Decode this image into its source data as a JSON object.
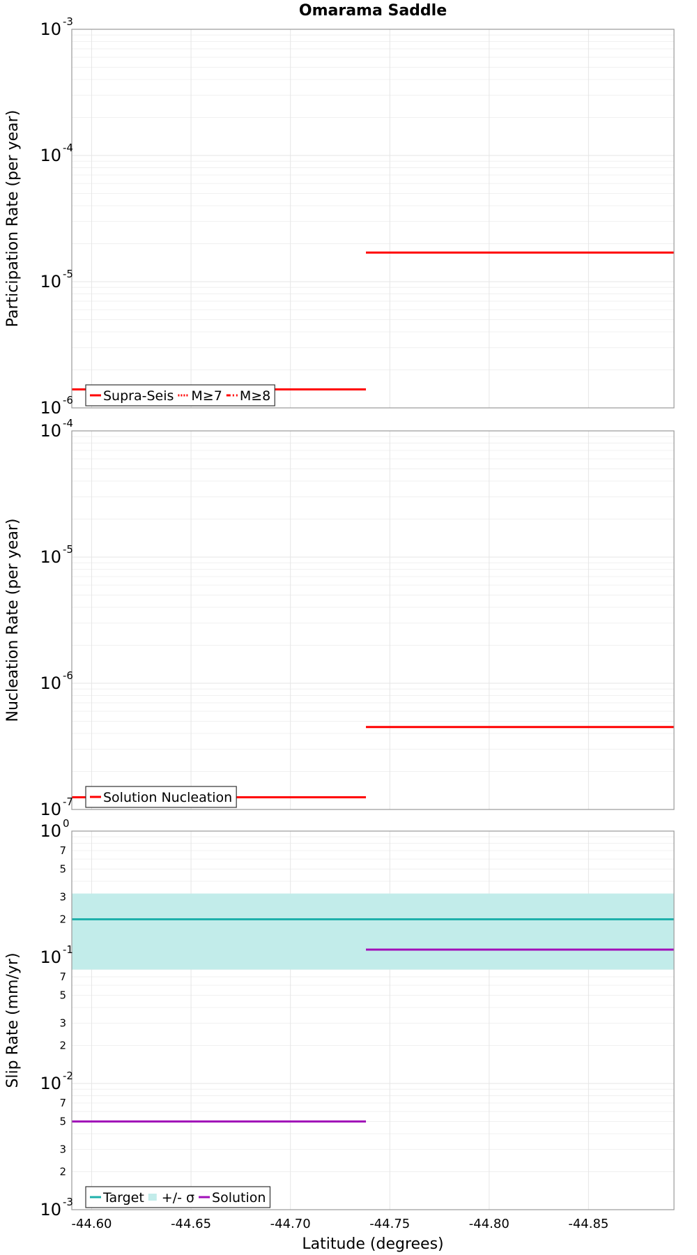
{
  "chart_data": {
    "type": "line",
    "title": "Omarama Saddle",
    "xlabel": "Latitude (degrees)",
    "xlim": [
      -44.59,
      -44.893
    ],
    "x_ticks": [
      "-44.60",
      "-44.65",
      "-44.70",
      "-44.75",
      "-44.80",
      "-44.85"
    ],
    "x_tick_values": [
      -44.6,
      -44.65,
      -44.7,
      -44.75,
      -44.8,
      -44.85
    ],
    "panels": [
      {
        "ylabel": "Participation Rate (per year)",
        "yscale": "log",
        "ylim_exp": [
          -6,
          -3
        ],
        "y_major_ticks": [
          {
            "base": "10",
            "exp": "-6"
          },
          {
            "base": "10",
            "exp": "-5"
          },
          {
            "base": "10",
            "exp": "-4"
          },
          {
            "base": "10",
            "exp": "-3"
          }
        ],
        "series": [
          {
            "name": "Supra-Seis",
            "color": "#ff0000",
            "style": "solid",
            "segments": [
              {
                "x": [
                  -44.59,
                  -44.738
                ],
                "y": 1.4e-06
              },
              {
                "x": [
                  -44.738,
                  -44.893
                ],
                "y": 1.7e-05
              }
            ]
          },
          {
            "name": "M≥7",
            "color": "#ff0000",
            "style": "dotted",
            "segments": []
          },
          {
            "name": "M≥8",
            "color": "#ff0000",
            "style": "dashdot",
            "segments": []
          }
        ]
      },
      {
        "ylabel": "Nucleation Rate (per year)",
        "yscale": "log",
        "ylim_exp": [
          -7,
          -4
        ],
        "y_major_ticks": [
          {
            "base": "10",
            "exp": "-7"
          },
          {
            "base": "10",
            "exp": "-6"
          },
          {
            "base": "10",
            "exp": "-5"
          },
          {
            "base": "10",
            "exp": "-4"
          }
        ],
        "series": [
          {
            "name": "Solution Nucleation",
            "color": "#ff0000",
            "style": "solid",
            "segments": [
              {
                "x": [
                  -44.59,
                  -44.738
                ],
                "y": 1.25e-07
              },
              {
                "x": [
                  -44.738,
                  -44.893
                ],
                "y": 4.5e-07
              }
            ]
          }
        ]
      },
      {
        "ylabel": "Slip Rate (mm/yr)",
        "yscale": "log",
        "ylim_exp": [
          -3,
          0
        ],
        "y_major_ticks": [
          {
            "base": "10",
            "exp": "-3"
          },
          {
            "base": "10",
            "exp": "-2"
          },
          {
            "base": "10",
            "exp": "-1"
          },
          {
            "base": "10",
            "exp": "0"
          }
        ],
        "y_minor_tick_labels": [
          "2",
          "3",
          "5",
          "7"
        ],
        "y_minor_tick_values": [
          2,
          3,
          5,
          7
        ],
        "band": {
          "name": "+/- σ",
          "color": "#c2ecea",
          "y_low": 0.08,
          "y_high": 0.32
        },
        "series": [
          {
            "name": "Target",
            "color": "#1fb0ab",
            "style": "solid",
            "segments": [
              {
                "x": [
                  -44.59,
                  -44.893
                ],
                "y": 0.2
              }
            ]
          },
          {
            "name": "Solution",
            "color": "#a10fb8",
            "style": "solid",
            "segments": [
              {
                "x": [
                  -44.59,
                  -44.738
                ],
                "y": 0.005
              },
              {
                "x": [
                  -44.738,
                  -44.893
                ],
                "y": 0.115
              }
            ]
          }
        ]
      }
    ]
  }
}
